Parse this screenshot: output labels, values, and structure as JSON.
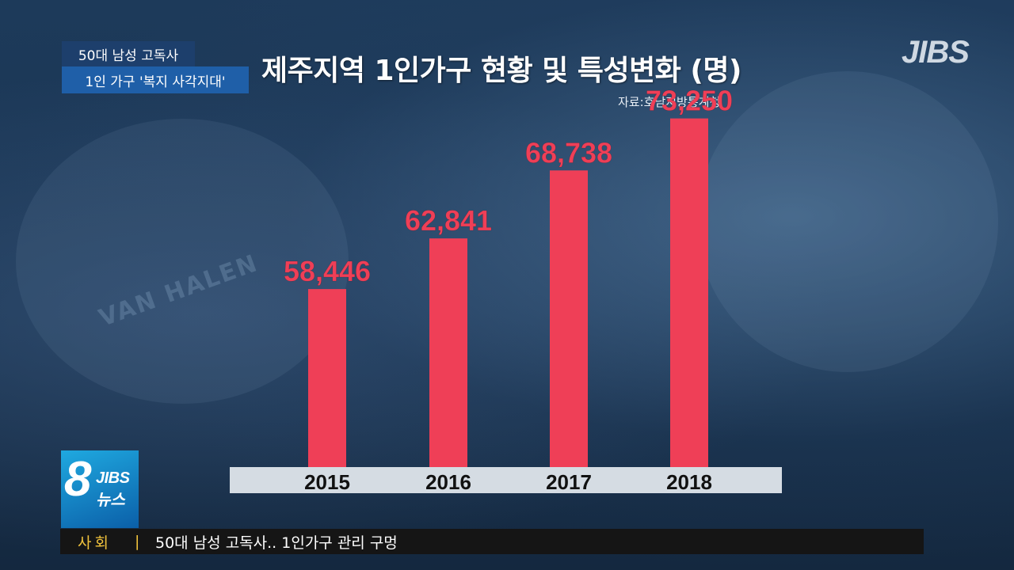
{
  "caption": {
    "line1": "50대 남성 고독사",
    "line2": "1인 가구 '복지 사각지대'"
  },
  "title": "제주지역 1인가구 현황 및 특성변화 (명)",
  "source": "자료:호남지방통계청",
  "logo": "JIBS",
  "badge": {
    "number": "8",
    "logo": "JIBS",
    "sub": "뉴스"
  },
  "ticker": {
    "category": "사회",
    "separator": "|",
    "headline": "50대 남성 고독사.. 1인가구 관리 구멍"
  },
  "colors": {
    "bar": "#ef3f57",
    "value_label": "#ef3f57",
    "axis_band": "#d5dce3",
    "tick_text": "#111111"
  },
  "chart_data": {
    "type": "bar",
    "title": "제주지역 1인가구 현황 및 특성변화 (명)",
    "categories": [
      "2015",
      "2016",
      "2017",
      "2018"
    ],
    "values": [
      58446,
      62841,
      68738,
      73250
    ],
    "value_labels": [
      "58,446",
      "62,841",
      "68,738",
      "73,250"
    ],
    "xlabel": "",
    "ylabel": "",
    "ylim": [
      43000,
      77000
    ],
    "grid": false,
    "legend": "none"
  }
}
